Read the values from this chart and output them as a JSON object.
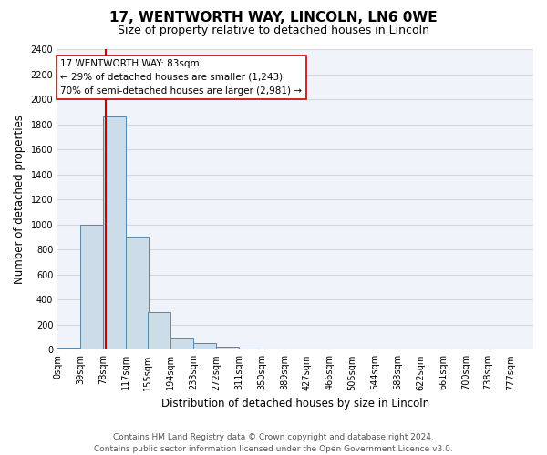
{
  "title": "17, WENTWORTH WAY, LINCOLN, LN6 0WE",
  "subtitle": "Size of property relative to detached houses in Lincoln",
  "xlabel": "Distribution of detached houses by size in Lincoln",
  "ylabel": "Number of detached properties",
  "bin_labels": [
    "0sqm",
    "39sqm",
    "78sqm",
    "117sqm",
    "155sqm",
    "194sqm",
    "233sqm",
    "272sqm",
    "311sqm",
    "350sqm",
    "389sqm",
    "427sqm",
    "466sqm",
    "505sqm",
    "544sqm",
    "583sqm",
    "622sqm",
    "661sqm",
    "700sqm",
    "738sqm",
    "777sqm"
  ],
  "bin_edges": [
    0,
    39,
    78,
    117,
    155,
    194,
    233,
    272,
    311,
    350,
    389,
    427,
    466,
    505,
    544,
    583,
    622,
    661,
    700,
    738,
    777
  ],
  "bar_heights": [
    20,
    1000,
    1860,
    900,
    300,
    100,
    50,
    25,
    10,
    0,
    0,
    0,
    0,
    0,
    0,
    0,
    0,
    0,
    0,
    0
  ],
  "bar_color": "#ccdce8",
  "bar_edge_color": "#5588aa",
  "vline_x": 83,
  "vline_color": "#cc0000",
  "ylim": [
    0,
    2400
  ],
  "yticks": [
    0,
    200,
    400,
    600,
    800,
    1000,
    1200,
    1400,
    1600,
    1800,
    2000,
    2200,
    2400
  ],
  "annotation_title": "17 WENTWORTH WAY: 83sqm",
  "annotation_line1": "← 29% of detached houses are smaller (1,243)",
  "annotation_line2": "70% of semi-detached houses are larger (2,981) →",
  "annotation_box_facecolor": "#ffffff",
  "annotation_box_edgecolor": "#cc0000",
  "footer_line1": "Contains HM Land Registry data © Crown copyright and database right 2024.",
  "footer_line2": "Contains public sector information licensed under the Open Government Licence v3.0.",
  "figure_facecolor": "#ffffff",
  "axes_facecolor": "#f0f4fa",
  "grid_color": "#d8d8d8",
  "title_fontsize": 11,
  "subtitle_fontsize": 9,
  "axis_label_fontsize": 8.5,
  "tick_fontsize": 7,
  "annotation_fontsize": 7.5,
  "footer_fontsize": 6.5
}
